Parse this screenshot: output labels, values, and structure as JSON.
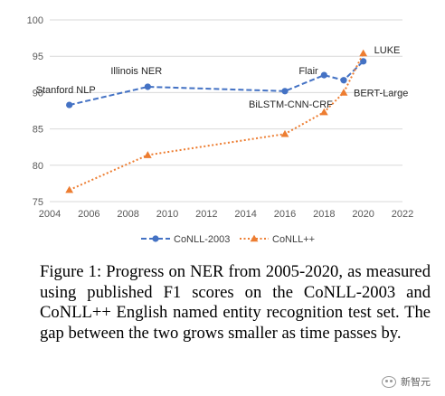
{
  "chart_data": {
    "type": "line",
    "xlim": [
      2004,
      2022
    ],
    "ylim": [
      75,
      100
    ],
    "x_ticks": [
      "2004",
      "2006",
      "2008",
      "2010",
      "2012",
      "2014",
      "2016",
      "2018",
      "2020",
      "2022"
    ],
    "y_ticks": [
      "75",
      "80",
      "85",
      "90",
      "95",
      "100"
    ],
    "grid": "horizontal",
    "legend_position": "bottom",
    "series": [
      {
        "name": "CoNLL-2003",
        "color": "#4472c4",
        "style": "dashed",
        "marker": "circle",
        "points": [
          {
            "x": 2005,
            "y": 88.3
          },
          {
            "x": 2009,
            "y": 90.8
          },
          {
            "x": 2016,
            "y": 90.2
          },
          {
            "x": 2018,
            "y": 92.4
          },
          {
            "x": 2019,
            "y": 91.7
          },
          {
            "x": 2020,
            "y": 94.3
          }
        ]
      },
      {
        "name": "CoNLL++",
        "color": "#ed7d31",
        "style": "dotted",
        "marker": "triangle",
        "points": [
          {
            "x": 2005,
            "y": 76.6
          },
          {
            "x": 2009,
            "y": 81.4
          },
          {
            "x": 2016,
            "y": 84.3
          },
          {
            "x": 2018,
            "y": 87.3
          },
          {
            "x": 2019,
            "y": 90.0
          },
          {
            "x": 2020,
            "y": 95.4
          }
        ]
      }
    ],
    "annotations": [
      {
        "text": "Stanford NLP",
        "x": 2005,
        "y": 88.3
      },
      {
        "text": "Illinois NER",
        "x": 2009,
        "y": 90.8
      },
      {
        "text": "BiLSTM-CNN-CRF",
        "x": 2016,
        "y": 90.2
      },
      {
        "text": "Flair",
        "x": 2018,
        "y": 92.4
      },
      {
        "text": "BERT-Large",
        "x": 2019,
        "y": 90.0
      },
      {
        "text": "LUKE",
        "x": 2020,
        "y": 95.4
      }
    ]
  },
  "caption": "Figure 1: Progress on NER from 2005-2020, as measured using published F1 scores on the CoNLL-2003 and CoNLL++ English named entity recognition test set. The gap between the two grows smaller as time passes by.",
  "watermark": {
    "text": "新智元",
    "icon": "wechat-icon"
  }
}
